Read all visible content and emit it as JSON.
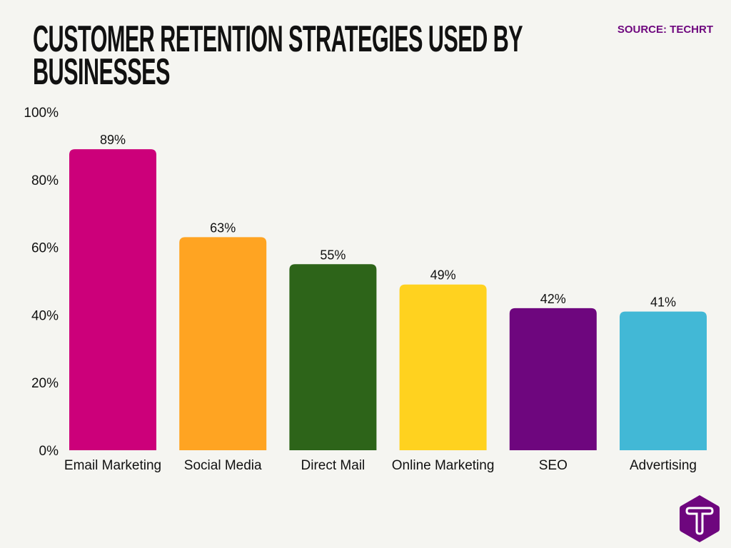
{
  "title_lines": [
    "CUSTOMER RETENTION STRATEGIES USED BY",
    "BUSINESSES"
  ],
  "source": "SOURCE: TECHRT",
  "logo": {
    "icon": "techrt-t-hexagon-logo",
    "color": "#6E067E",
    "text": "T"
  },
  "background": "#F5F5F1",
  "chart_data": {
    "type": "bar",
    "title": "CUSTOMER RETENTION STRATEGIES USED BY BUSINESSES",
    "categories": [
      "Email Marketing",
      "Social Media",
      "Direct Mail",
      "Online Marketing",
      "SEO",
      "Advertising"
    ],
    "values": [
      89,
      63,
      55,
      49,
      42,
      41
    ],
    "data_labels": [
      "89%",
      "63%",
      "55%",
      "49%",
      "42%",
      "41%"
    ],
    "colors": [
      "#CC007A",
      "#FFA422",
      "#2D6419",
      "#FFD21F",
      "#6E067E",
      "#42B8D6"
    ],
    "yticks": [
      0,
      20,
      40,
      60,
      80,
      100
    ],
    "ytick_labels": [
      "0%",
      "20%",
      "40%",
      "60%",
      "80%",
      "100%"
    ],
    "ylim": [
      0,
      100
    ],
    "xlabel": "",
    "ylabel": "",
    "grid": false,
    "legend": "none"
  }
}
